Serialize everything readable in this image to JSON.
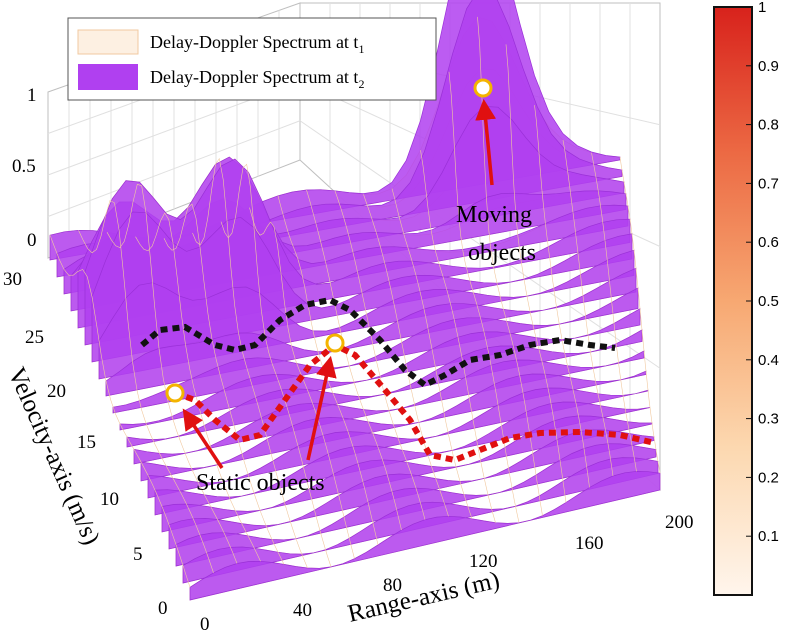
{
  "chart_data": {
    "type": "surface",
    "title": "",
    "xlabel": "Range-axis (m)",
    "ylabel": "Velocity-axis (m/s)",
    "zlabel": "",
    "x_ticks": [
      "0",
      "40",
      "80",
      "120",
      "160",
      "200"
    ],
    "y_ticks": [
      "0",
      "5",
      "10",
      "15",
      "20",
      "25",
      "30"
    ],
    "z_ticks": [
      "0",
      "0.5",
      "1"
    ],
    "xlim": [
      0,
      200
    ],
    "ylim": [
      0,
      30
    ],
    "zlim": [
      0,
      1
    ],
    "grid": true,
    "colorbar": {
      "ticks": [
        "0.1",
        "0.2",
        "0.3",
        "0.4",
        "0.5",
        "0.6",
        "0.7",
        "0.8",
        "0.9",
        "1"
      ],
      "range": [
        0,
        1
      ],
      "colors": [
        "#fff5ec",
        "#fcd8b0",
        "#f7a872",
        "#ec6a44",
        "#d8221c"
      ]
    },
    "legend": {
      "position": "top-left",
      "entries": [
        {
          "label": "Delay-Doppler Spectrum at t",
          "subscript": "1",
          "color": "#fdf0e2"
        },
        {
          "label": "Delay-Doppler Spectrum at t",
          "subscript": "2",
          "color": "#b040f0"
        }
      ]
    },
    "series": [
      {
        "name": "Delay-Doppler Spectrum at t1",
        "peaks": [
          {
            "range": 15,
            "velocity": 22,
            "amplitude": 0.55
          },
          {
            "range": 55,
            "velocity": 23,
            "amplitude": 0.6
          },
          {
            "range": 150,
            "velocity": 30,
            "amplitude": 0.6
          }
        ]
      },
      {
        "name": "Delay-Doppler Spectrum at t2",
        "peaks": [
          {
            "range": 15,
            "velocity": 22,
            "amplitude": 0.55
          },
          {
            "range": 55,
            "velocity": 23,
            "amplitude": 0.6
          },
          {
            "range": 150,
            "velocity": 30,
            "amplitude": 1.0
          }
        ]
      }
    ],
    "annotations": [
      {
        "text": "Moving objects",
        "target": {
          "range": 150,
          "velocity": 30,
          "amplitude": 1.0
        }
      },
      {
        "text": "Static objects",
        "targets": [
          {
            "range": 15,
            "velocity": 22,
            "amplitude": 0.55
          },
          {
            "range": 55,
            "velocity": 23,
            "amplitude": 0.6
          }
        ]
      }
    ],
    "annotation_lines": {
      "moving_lines": [
        "Moving",
        "objects"
      ],
      "static_text": "Static objects"
    }
  }
}
